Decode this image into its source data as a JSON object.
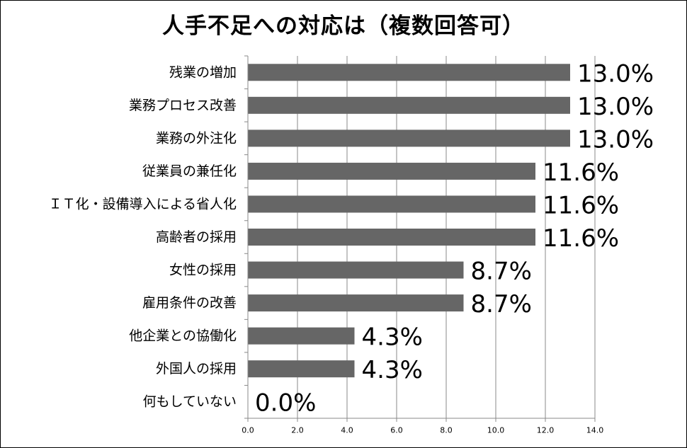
{
  "chart_data": {
    "type": "bar",
    "orientation": "horizontal",
    "title": "人手不足への対応は（複数回答可）",
    "categories": [
      "残業の増加",
      "業務プロセス改善",
      "業務の外注化",
      "従業員の兼任化",
      "ＩＴ化・設備導入による省人化",
      "高齢者の採用",
      "女性の採用",
      "雇用条件の改善",
      "他企業との協働化",
      "外国人の採用",
      "何もしていない"
    ],
    "values": [
      13.0,
      13.0,
      13.0,
      11.6,
      11.6,
      11.6,
      8.7,
      8.7,
      4.3,
      4.3,
      0.0
    ],
    "data_labels": [
      "13.0%",
      "13.0%",
      "13.0%",
      "11.6%",
      "11.6%",
      "11.6%",
      "8.7%",
      "8.7%",
      "4.3%",
      "4.3%",
      "0.0%"
    ],
    "xlim": [
      0,
      14
    ],
    "xticks": [
      0.0,
      2.0,
      4.0,
      6.0,
      8.0,
      10.0,
      12.0,
      14.0
    ],
    "xtick_labels": [
      "0.0",
      "2.0",
      "4.0",
      "6.0",
      "8.0",
      "10.0",
      "12.0",
      "14.0"
    ],
    "grid": "vertical",
    "legend": "none",
    "bar_color": "#666666",
    "grid_color": "#888888"
  }
}
